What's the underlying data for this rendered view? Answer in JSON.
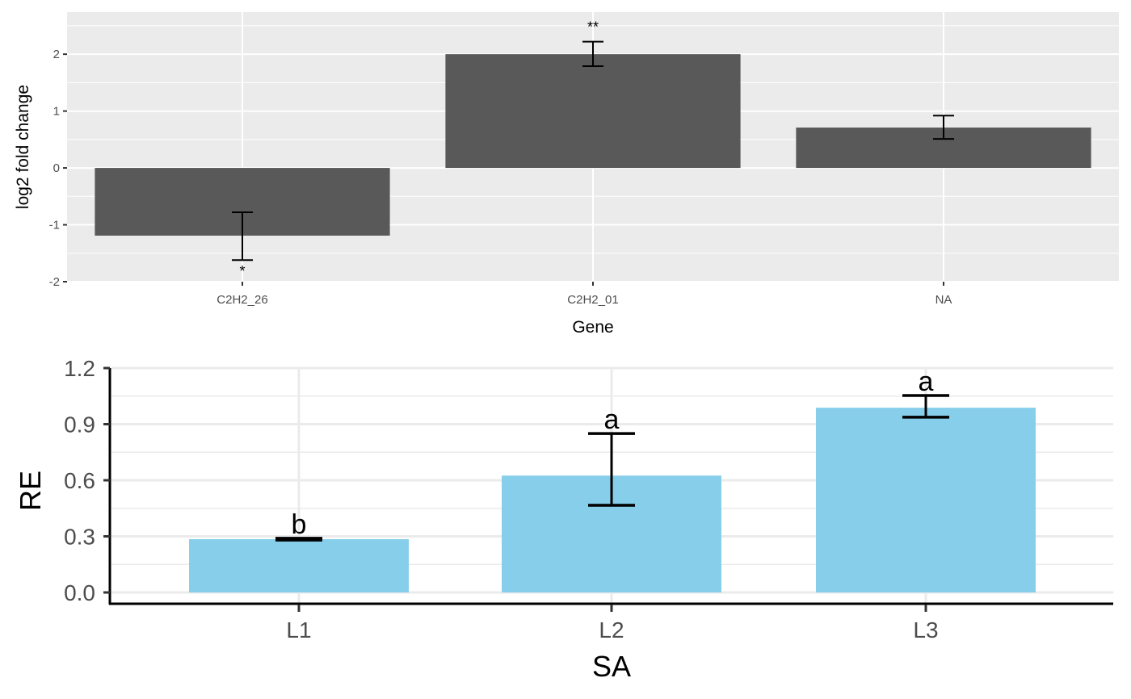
{
  "chart_data": [
    {
      "type": "bar",
      "title": "",
      "xlabel": "Gene",
      "ylabel": "log2 fold change",
      "categories": [
        "C2H2_26",
        "C2H2_01",
        "NA"
      ],
      "values": [
        -1.19,
        2.0,
        0.71
      ],
      "error_upper": [
        -0.78,
        2.22,
        0.92
      ],
      "error_lower": [
        -1.62,
        1.79,
        0.51
      ],
      "annotations": [
        "*",
        "**",
        ""
      ],
      "annotation_position": [
        "below",
        "above",
        "above"
      ],
      "yticks": [
        "2",
        "1",
        "0",
        "-1",
        "-2"
      ],
      "ytick_values": [
        2,
        1,
        0,
        -1,
        -2
      ],
      "ylim": [
        -2,
        2.7
      ],
      "grid": true,
      "bar_color": "#595959",
      "panel_color": "#EBEBEB"
    },
    {
      "type": "bar",
      "title": "",
      "xlabel": "SA",
      "ylabel": "RE",
      "categories": [
        "L1",
        "L2",
        "L3"
      ],
      "values": [
        0.285,
        0.625,
        0.988
      ],
      "error_upper": [
        0.29,
        0.85,
        1.053
      ],
      "error_lower": [
        0.28,
        0.466,
        0.937
      ],
      "annotations": [
        "b",
        "a",
        "a"
      ],
      "annotation_position": [
        "above",
        "above",
        "above"
      ],
      "yticks": [
        "1.2",
        "0.9",
        "0.6",
        "0.3",
        "0.0"
      ],
      "ytick_values": [
        1.2,
        0.9,
        0.6,
        0.3,
        0.0
      ],
      "ylim": [
        -0.06,
        1.2
      ],
      "grid": true,
      "bar_color": "#87CEEB",
      "panel_color": "#FFFFFF"
    }
  ]
}
